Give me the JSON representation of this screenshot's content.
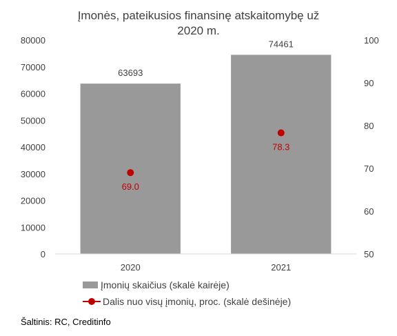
{
  "chart_data": {
    "type": "bar",
    "title": "Įmonės, pateikusios finansinę atskaitomybę už 2020 m.",
    "title_lines": [
      "Įmonės, pateikusios finansinę atskaitomybę už",
      "2020 m."
    ],
    "categories": [
      "2020",
      "2021"
    ],
    "series": [
      {
        "name": "Įmonių skaičius (skalė kairėje)",
        "type": "bar",
        "axis": "left",
        "values": [
          63693,
          74461
        ],
        "labels": [
          "63693",
          "74461"
        ],
        "color": "#999999"
      },
      {
        "name": "Dalis nuo visų įmonių, proc. (skalė dešinėje)",
        "type": "line",
        "axis": "right",
        "values": [
          69.0,
          78.3
        ],
        "labels": [
          "69.0",
          "78.3"
        ],
        "color": "#c00000"
      }
    ],
    "y_left": {
      "min": 0,
      "max": 80000,
      "ticks": [
        "0",
        "10000",
        "20000",
        "30000",
        "40000",
        "50000",
        "60000",
        "70000",
        "80000"
      ]
    },
    "y_right": {
      "min": 50,
      "max": 100,
      "ticks": [
        "50",
        "60",
        "70",
        "80",
        "90",
        "100"
      ]
    },
    "grid": false,
    "legend_position": "bottom-left"
  },
  "source": "Šaltinis: RC, Creditinfo"
}
